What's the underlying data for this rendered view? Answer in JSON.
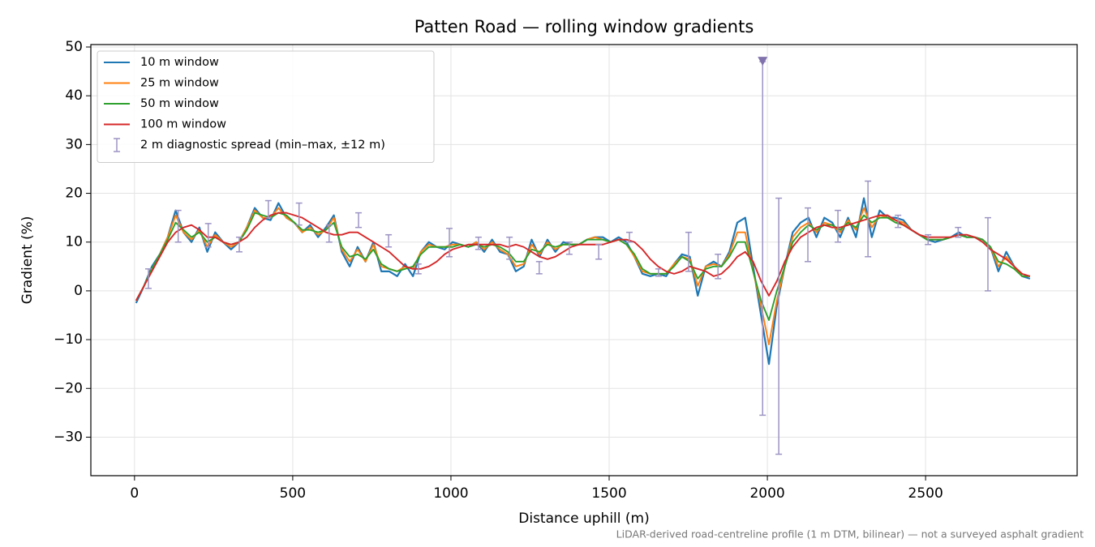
{
  "chart_data": {
    "type": "line",
    "title": "Patten Road — rolling window gradients",
    "x_label": "Distance uphill (m)",
    "y_label": "Gradient (%)",
    "note": "LiDAR-derived road-centreline profile (1 m DTM, bilinear) — not a surveyed asphalt gradient",
    "xlim": [
      -138,
      2979
    ],
    "ylim": [
      -37.9,
      50.5
    ],
    "xticks": [
      0,
      500,
      1000,
      1500,
      2000,
      2500
    ],
    "yticks": [
      {
        "value": -30,
        "label": "−30"
      },
      {
        "value": -20,
        "label": "−20"
      },
      {
        "value": -10,
        "label": "−10"
      },
      0,
      10,
      20,
      30,
      40,
      50
    ],
    "grid": true,
    "legend": "upper left",
    "x": [
      5,
      30,
      55,
      80,
      105,
      130,
      155,
      180,
      205,
      230,
      255,
      280,
      305,
      330,
      355,
      380,
      405,
      430,
      455,
      480,
      505,
      530,
      555,
      580,
      605,
      630,
      655,
      680,
      705,
      730,
      755,
      780,
      805,
      830,
      855,
      880,
      905,
      930,
      955,
      980,
      1005,
      1030,
      1055,
      1080,
      1105,
      1130,
      1155,
      1180,
      1205,
      1230,
      1255,
      1280,
      1305,
      1330,
      1355,
      1380,
      1405,
      1430,
      1455,
      1480,
      1505,
      1530,
      1555,
      1580,
      1605,
      1630,
      1655,
      1680,
      1705,
      1730,
      1755,
      1780,
      1805,
      1830,
      1855,
      1880,
      1905,
      1930,
      1955,
      1980,
      2005,
      2030,
      2055,
      2080,
      2105,
      2130,
      2155,
      2180,
      2205,
      2230,
      2255,
      2280,
      2305,
      2330,
      2355,
      2380,
      2405,
      2430,
      2455,
      2480,
      2505,
      2530,
      2555,
      2580,
      2605,
      2630,
      2655,
      2680,
      2705,
      2730,
      2755,
      2780,
      2805,
      2830
    ],
    "series": [
      {
        "name": "10 m window",
        "color": "#1f77b4",
        "values": [
          -2.5,
          1,
          5,
          7.5,
          11,
          16.5,
          12,
          10,
          13,
          8,
          12,
          10,
          8.5,
          10,
          13,
          17,
          15,
          14.5,
          18,
          15,
          14,
          12,
          13.5,
          11,
          13,
          15.5,
          8,
          5,
          9,
          6,
          10,
          4,
          4,
          3,
          5.5,
          3,
          8,
          10,
          9,
          8.5,
          10,
          9.5,
          9,
          10,
          8,
          10.5,
          8,
          7.5,
          4,
          5,
          10.5,
          7,
          10.5,
          8,
          10,
          9.5,
          9.5,
          10.5,
          11,
          11,
          10,
          11,
          10,
          7,
          3.5,
          3,
          3.5,
          3,
          5.5,
          7.5,
          7,
          -1,
          5,
          6,
          5,
          8,
          14,
          15,
          5,
          -5,
          -15,
          -3,
          5,
          12,
          14,
          15,
          11,
          15,
          14,
          11,
          15,
          11,
          19,
          11,
          16.5,
          15,
          15,
          14.5,
          12.5,
          11.5,
          10.5,
          10,
          10.5,
          11,
          12,
          11,
          11,
          10.5,
          9,
          4,
          8,
          5,
          3,
          2.5
        ]
      },
      {
        "name": "25 m window",
        "color": "#ff7f0e",
        "values": [
          -2,
          1,
          4.5,
          7.5,
          11,
          15.5,
          12,
          10.5,
          12.5,
          9,
          11.5,
          10,
          9,
          10,
          13,
          16.5,
          15,
          15,
          17,
          15,
          14,
          12,
          13,
          11.5,
          12.5,
          15,
          8.5,
          6,
          8.5,
          6,
          9.5,
          5,
          4.5,
          4,
          5,
          4.5,
          8,
          9.5,
          9,
          9,
          9.5,
          9.5,
          9,
          10,
          8.5,
          10,
          8.5,
          7.5,
          5,
          5.5,
          9.5,
          7.5,
          10,
          8.5,
          9.5,
          9.5,
          9.5,
          10.5,
          11,
          10.5,
          10,
          10.5,
          9.5,
          7,
          4,
          3.5,
          3.5,
          3.5,
          5.5,
          7,
          6.5,
          1,
          5,
          5.5,
          5,
          7.5,
          12,
          12,
          4,
          -3,
          -11,
          -2,
          5,
          11,
          13,
          14,
          12,
          14,
          13.5,
          12,
          14.5,
          12.5,
          17,
          13,
          15.5,
          15,
          14.5,
          14,
          12.5,
          11.5,
          10.5,
          10.5,
          10.5,
          11,
          11.5,
          11,
          11,
          10.5,
          9,
          5,
          7,
          5,
          3,
          3
        ]
      },
      {
        "name": "50 m window",
        "color": "#2ca02c",
        "values": [
          -2,
          1,
          4.5,
          7.5,
          10.5,
          14,
          12.5,
          11,
          12,
          10,
          11,
          10,
          9.5,
          10,
          12.5,
          16,
          15.5,
          15,
          16,
          15.5,
          14,
          12.5,
          12.5,
          12,
          12.5,
          14,
          9,
          7,
          7.5,
          6.5,
          8.5,
          5.5,
          4.5,
          4,
          4.5,
          5,
          7.5,
          9,
          9,
          9,
          9,
          9.5,
          9,
          9.5,
          9,
          9.5,
          9,
          8,
          6,
          6,
          8.5,
          8,
          9.5,
          9,
          9.5,
          9.5,
          9.5,
          10.5,
          10.5,
          10.5,
          10,
          10.5,
          9.5,
          7.5,
          4.5,
          3.5,
          3.5,
          3.5,
          5,
          7,
          6,
          2.5,
          4.5,
          5,
          5,
          7,
          10,
          10,
          4,
          -2,
          -6,
          0,
          5,
          10,
          12,
          13.5,
          12.5,
          13.5,
          13.5,
          12.5,
          14,
          13,
          15.5,
          14,
          15,
          15,
          14,
          13.5,
          12.5,
          11.5,
          10.5,
          10.5,
          10.5,
          11,
          11.5,
          11,
          11,
          10.5,
          9,
          6,
          5.5,
          4.5,
          3,
          3
        ]
      },
      {
        "name": "100 m window",
        "color": "#d62728",
        "values": [
          -2,
          1,
          4,
          7,
          10,
          12,
          13,
          13.5,
          12.5,
          11,
          11,
          10,
          9.5,
          10,
          11,
          13,
          14.5,
          15.5,
          16,
          16,
          15.5,
          15,
          14,
          13,
          12,
          11.5,
          11.5,
          12,
          12,
          11,
          10,
          9,
          8,
          6.5,
          5,
          4.5,
          4.5,
          5,
          6,
          7.5,
          8.5,
          9,
          9.5,
          9.5,
          9.5,
          9.5,
          9.5,
          9,
          9.5,
          9,
          8,
          7,
          6.5,
          7,
          8,
          9,
          9.5,
          9.5,
          9.5,
          9.5,
          10,
          10.5,
          10.5,
          10,
          8.5,
          6.5,
          5,
          4,
          3.5,
          4,
          5,
          4.5,
          4,
          3,
          3.5,
          5,
          7,
          8,
          6,
          2,
          -1,
          2,
          6,
          9,
          11,
          12,
          13,
          13.5,
          13,
          13,
          13.5,
          14,
          14.5,
          15,
          15.5,
          15.5,
          14.5,
          13.5,
          12.5,
          11.5,
          11,
          11,
          11,
          11,
          11.5,
          11.5,
          11,
          10,
          8.5,
          7.5,
          6.5,
          5,
          3.5,
          3
        ]
      }
    ],
    "errorbars": {
      "name": "2 m diagnostic spread (min–max, ±12 m)",
      "color": "#9d94c4",
      "x": [
        44,
        138,
        233,
        331,
        423,
        520,
        615,
        708,
        803,
        897,
        995,
        1087,
        1185,
        1279,
        1374,
        1467,
        1564,
        1656,
        1751,
        1844,
        1985,
        2036,
        2128,
        2223,
        2318,
        2413,
        2508,
        2603,
        2697
      ],
      "low": [
        0.5,
        10,
        9,
        8,
        15,
        13.5,
        10,
        13,
        9,
        3.5,
        7,
        8.5,
        6.5,
        3.5,
        7.5,
        6.5,
        10,
        3,
        4,
        2.5,
        -25.5,
        -33.5,
        6,
        10,
        7,
        13,
        9.5,
        11,
        0
      ],
      "high": [
        4.5,
        16.5,
        13.8,
        11,
        18.5,
        18,
        13.5,
        16,
        11.5,
        5.5,
        12.8,
        11,
        11,
        6,
        10,
        9.5,
        12,
        4.5,
        12,
        7.5,
        47,
        19,
        17,
        16.5,
        22.5,
        15.5,
        11.5,
        13,
        15
      ]
    },
    "overflow_markers": {
      "color": "#8072ac",
      "x": [
        1985
      ],
      "y": [
        47
      ]
    }
  }
}
